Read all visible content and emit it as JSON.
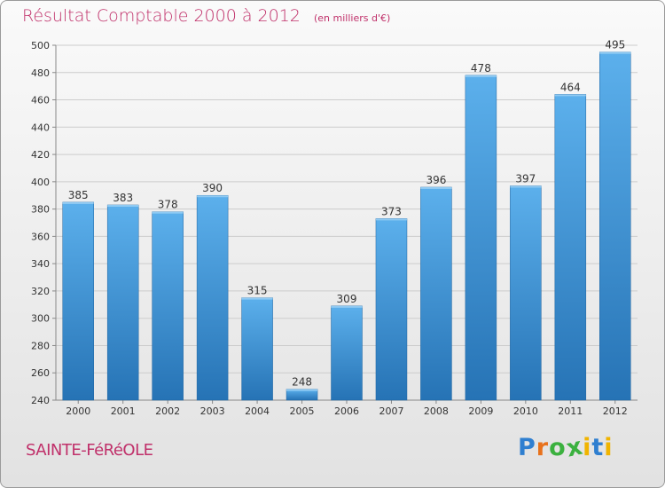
{
  "title": "Résultat Comptable 2000 à 2012",
  "subtitle": "(en milliers d'€)",
  "city": "SAINTE-FéRéOLE",
  "logo_text": "Proxiti",
  "colors": {
    "accent": "#c0306a",
    "bar_top": "#5cb0ec",
    "bar_bottom": "#2673b5",
    "grid": "#cccccc"
  },
  "chart_data": {
    "type": "bar",
    "title": "Résultat Comptable 2000 à 2012",
    "subtitle": "(en milliers d'€)",
    "xlabel": "",
    "ylabel": "",
    "categories": [
      "2000",
      "2001",
      "2002",
      "2003",
      "2004",
      "2005",
      "2006",
      "2007",
      "2008",
      "2009",
      "2010",
      "2011",
      "2012"
    ],
    "values": [
      385,
      383,
      378,
      390,
      315,
      248,
      309,
      373,
      396,
      478,
      397,
      464,
      495
    ],
    "ylim": [
      240,
      500
    ],
    "yticks": [
      240,
      260,
      280,
      300,
      320,
      340,
      360,
      380,
      400,
      420,
      440,
      460,
      480,
      500
    ],
    "grid": true,
    "legend": "none"
  }
}
